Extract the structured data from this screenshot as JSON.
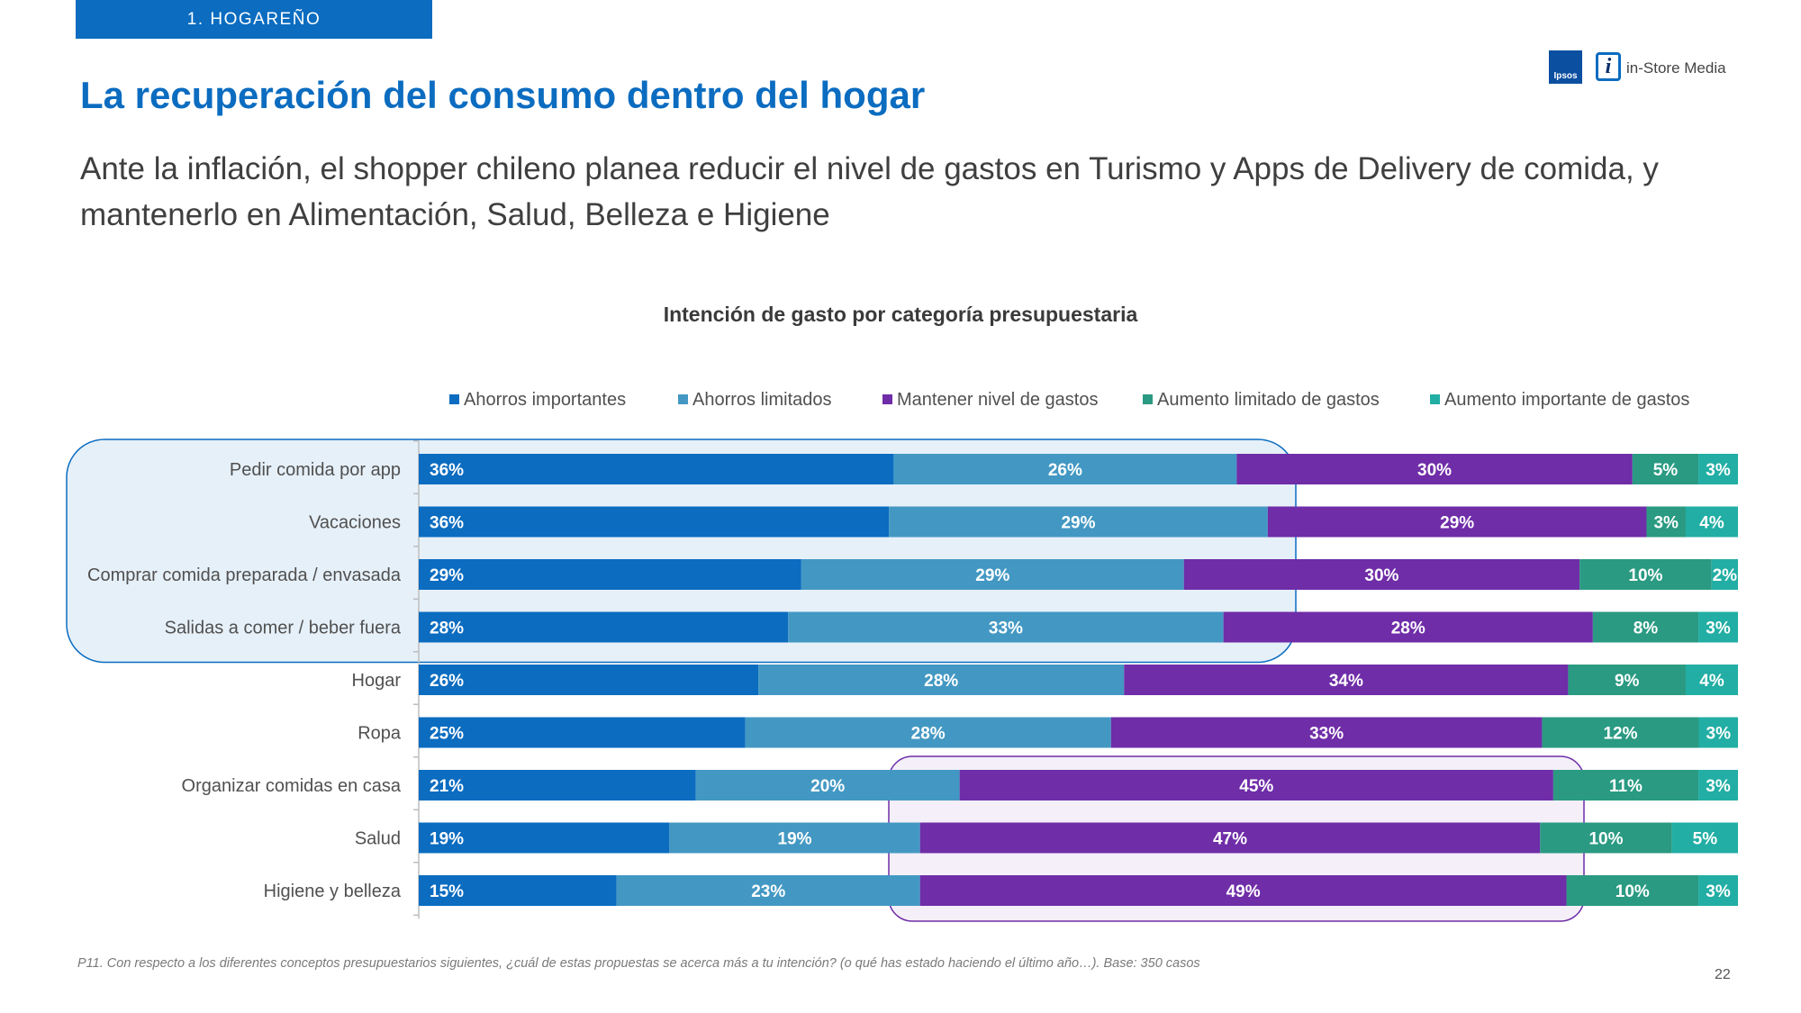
{
  "section_tag": "1. HOGAREÑO",
  "logos": {
    "ipsos": "Ipsos",
    "instore_icon": "i",
    "instore": "in-Store Media"
  },
  "title": "La recuperación del consumo dentro del hogar",
  "subtitle": "Ante la inflación, el shopper chileno planea reducir el nivel de gastos en Turismo y Apps de Delivery de comida, y mantenerlo en Alimentación, Salud, Belleza e Higiene",
  "footnote": "P11. Con respecto a los diferentes conceptos presupuestarios siguientes, ¿cuál de estas propuestas se acerca más a tu intención? (o qué has estado haciendo el último año…). Base: 350 casos",
  "page_number": "22",
  "chart_data": {
    "type": "bar",
    "orientation": "horizontal",
    "stacked": true,
    "title": "Intención de gasto por categoría presupuestaria",
    "legend_placement": "top",
    "categories": [
      "Pedir comida por app",
      "Vacaciones",
      "Comprar comida preparada / envasada",
      "Salidas a comer / beber fuera",
      "Hogar",
      "Ropa",
      "Organizar comidas en casa",
      "Salud",
      "Higiene y belleza"
    ],
    "series": [
      {
        "name": "Ahorros importantes",
        "color": "#0b6cc0",
        "values": [
          36,
          36,
          29,
          28,
          26,
          25,
          21,
          19,
          15
        ]
      },
      {
        "name": "Ahorros limitados",
        "color": "#4398c3",
        "values": [
          26,
          29,
          29,
          33,
          28,
          28,
          20,
          19,
          23
        ]
      },
      {
        "name": "Mantener nivel de gastos",
        "color": "#6f2da8",
        "values": [
          30,
          29,
          30,
          28,
          34,
          33,
          45,
          47,
          49
        ]
      },
      {
        "name": "Aumento limitado de gastos",
        "color": "#2a9a82",
        "values": [
          5,
          3,
          10,
          8,
          9,
          12,
          11,
          10,
          10
        ]
      },
      {
        "name": "Aumento importante de gastos",
        "color": "#22aea4",
        "values": [
          3,
          4,
          2,
          3,
          4,
          3,
          3,
          5,
          3
        ]
      }
    ],
    "value_suffix": "%",
    "highlights": [
      {
        "categories_from": 0,
        "categories_to": 3,
        "color": "#0b6cc0"
      },
      {
        "categories_from": 6,
        "categories_to": 8,
        "color": "#6f2da8"
      }
    ]
  }
}
